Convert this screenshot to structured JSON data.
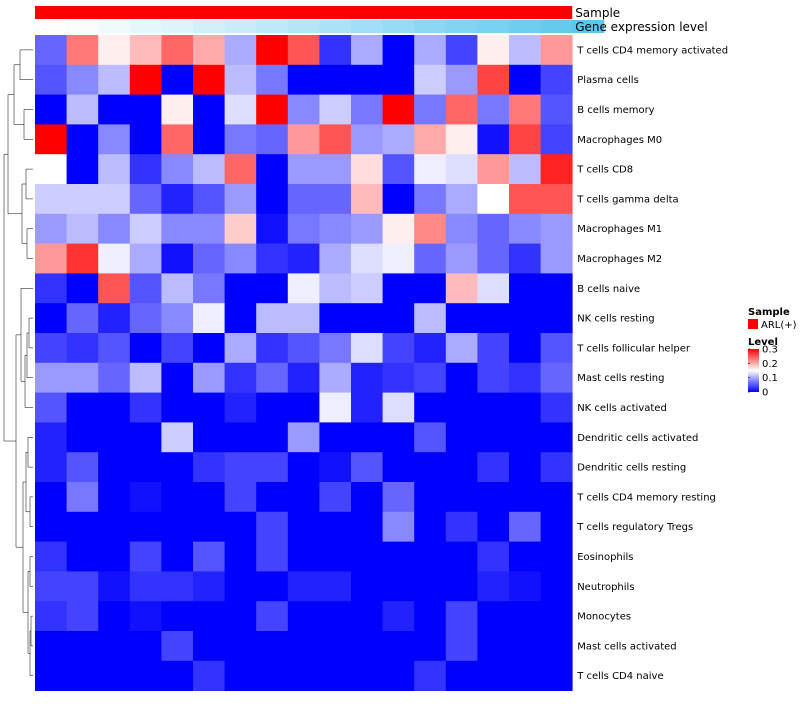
{
  "chart_data": {
    "type": "heatmap",
    "column_annotations": [
      {
        "name": "Sample",
        "value": "ARL(+)",
        "color": "#ff0000"
      },
      {
        "name": "Gene expression level",
        "colors": [
          "#ffffff",
          "#fafdfe",
          "#f0fafd",
          "#e6f7fc",
          "#dcf4fb",
          "#d2f0fa",
          "#c8edf9",
          "#bee9f8",
          "#b4e6f7",
          "#aae3f6",
          "#a0dff5",
          "#96dcf4",
          "#8cd8f3",
          "#82d5f2",
          "#78d2f1",
          "#6ecef0",
          "#64cbef",
          "#5ac8ee"
        ]
      }
    ],
    "rows": [
      "T cells CD4 memory activated",
      "Plasma cells",
      "B cells memory",
      "Macrophages M0",
      "T cells CD8",
      "T cells gamma delta",
      "Macrophages M1",
      "Macrophages M2",
      "B cells naive",
      "NK cells resting",
      "T cells follicular helper",
      "Mast cells resting",
      "NK cells activated",
      "Dendritic cells activated",
      "Dendritic cells resting",
      "T cells CD4 memory resting",
      "T cells regulatory  Tregs",
      "Eosinophils",
      "Neutrophils",
      "Monocytes",
      "Mast cells activated",
      "T cells CD4 naive"
    ],
    "values": [
      [
        0.06,
        0.23,
        0.16,
        0.19,
        0.24,
        0.2,
        0.1,
        0.3,
        0.25,
        0.03,
        0.1,
        0.0,
        0.1,
        0.04,
        0.16,
        0.11,
        0.21
      ],
      [
        0.05,
        0.08,
        0.11,
        0.3,
        0.0,
        0.3,
        0.11,
        0.07,
        0.0,
        0.0,
        0.0,
        0.0,
        0.12,
        0.09,
        0.26,
        0.0,
        0.04
      ],
      [
        0.0,
        0.11,
        0.0,
        0.0,
        0.16,
        0.0,
        0.13,
        0.3,
        0.08,
        0.12,
        0.07,
        0.3,
        0.07,
        0.24,
        0.07,
        0.23,
        0.05
      ],
      [
        0.3,
        0.0,
        0.08,
        0.0,
        0.24,
        0.0,
        0.07,
        0.06,
        0.21,
        0.25,
        0.09,
        0.1,
        0.2,
        0.16,
        0.01,
        0.26,
        0.04
      ],
      [
        0.15,
        0.0,
        0.11,
        0.03,
        0.08,
        0.11,
        0.24,
        0.0,
        0.09,
        0.09,
        0.17,
        0.05,
        0.14,
        0.13,
        0.21,
        0.11,
        0.28
      ],
      [
        0.12,
        0.12,
        0.12,
        0.06,
        0.02,
        0.05,
        0.09,
        0.0,
        0.06,
        0.06,
        0.19,
        0.0,
        0.07,
        0.1,
        0.15,
        0.25,
        0.25
      ],
      [
        0.09,
        0.11,
        0.08,
        0.12,
        0.08,
        0.08,
        0.18,
        0.01,
        0.07,
        0.08,
        0.09,
        0.16,
        0.22,
        0.08,
        0.06,
        0.08,
        0.09
      ],
      [
        0.21,
        0.27,
        0.14,
        0.1,
        0.01,
        0.06,
        0.08,
        0.03,
        0.02,
        0.1,
        0.13,
        0.14,
        0.06,
        0.09,
        0.06,
        0.03,
        0.09
      ],
      [
        0.03,
        0.0,
        0.25,
        0.05,
        0.11,
        0.07,
        0.0,
        0.0,
        0.14,
        0.11,
        0.12,
        0.0,
        0.0,
        0.19,
        0.13,
        0.0,
        0.0
      ],
      [
        0.0,
        0.06,
        0.02,
        0.06,
        0.08,
        0.14,
        0.0,
        0.11,
        0.11,
        0.0,
        0.0,
        0.0,
        0.11,
        0.0,
        0.0,
        0.0,
        0.0
      ],
      [
        0.04,
        0.03,
        0.05,
        0.0,
        0.04,
        0.0,
        0.1,
        0.03,
        0.05,
        0.07,
        0.13,
        0.04,
        0.02,
        0.1,
        0.04,
        0.0,
        0.05
      ],
      [
        0.09,
        0.09,
        0.06,
        0.11,
        0.0,
        0.09,
        0.03,
        0.06,
        0.02,
        0.1,
        0.02,
        0.03,
        0.04,
        0.0,
        0.04,
        0.03,
        0.06
      ],
      [
        0.05,
        0.0,
        0.0,
        0.03,
        0.0,
        0.0,
        0.02,
        0.0,
        0.0,
        0.14,
        0.02,
        0.13,
        0.0,
        0.0,
        0.0,
        0.0,
        0.03
      ],
      [
        0.02,
        0.0,
        0.0,
        0.0,
        0.12,
        0.0,
        0.0,
        0.0,
        0.09,
        0.0,
        0.0,
        0.0,
        0.05,
        0.0,
        0.0,
        0.0,
        0.0
      ],
      [
        0.02,
        0.05,
        0.0,
        0.0,
        0.0,
        0.03,
        0.04,
        0.04,
        0.0,
        0.01,
        0.05,
        0.0,
        0.0,
        0.0,
        0.03,
        0.0,
        0.03
      ],
      [
        0.0,
        0.07,
        0.0,
        0.01,
        0.0,
        0.0,
        0.04,
        0.0,
        0.0,
        0.04,
        0.0,
        0.06,
        0.0,
        0.0,
        0.0,
        0.0,
        0.0
      ],
      [
        0.0,
        0.0,
        0.0,
        0.0,
        0.0,
        0.0,
        0.0,
        0.04,
        0.0,
        0.0,
        0.0,
        0.08,
        0.0,
        0.03,
        0.0,
        0.06,
        0.0
      ],
      [
        0.03,
        0.0,
        0.0,
        0.04,
        0.0,
        0.05,
        0.0,
        0.04,
        0.0,
        0.0,
        0.0,
        0.0,
        0.0,
        0.0,
        0.03,
        0.0,
        0.0
      ],
      [
        0.04,
        0.04,
        0.01,
        0.03,
        0.03,
        0.02,
        0.0,
        0.0,
        0.02,
        0.02,
        0.0,
        0.0,
        0.0,
        0.0,
        0.02,
        0.01,
        0.0
      ],
      [
        0.03,
        0.04,
        0.0,
        0.01,
        0.0,
        0.0,
        0.0,
        0.04,
        0.0,
        0.0,
        0.0,
        0.02,
        0.0,
        0.04,
        0.0,
        0.0,
        0.0
      ],
      [
        0.0,
        0.0,
        0.0,
        0.0,
        0.04,
        0.0,
        0.0,
        0.0,
        0.0,
        0.0,
        0.0,
        0.0,
        0.0,
        0.04,
        0.0,
        0.0,
        0.0
      ],
      [
        0.0,
        0.0,
        0.0,
        0.0,
        0.0,
        0.03,
        0.0,
        0.0,
        0.0,
        0.0,
        0.0,
        0.0,
        0.03,
        0.0,
        0.0,
        0.0,
        0.0
      ]
    ],
    "color_scale": {
      "min": 0,
      "mid": 0.15,
      "max": 0.3,
      "low": "#0000ff",
      "midColor": "#ffffff",
      "high": "#ff0000"
    },
    "legend": {
      "sample_title": "Sample",
      "sample_entry": "ARL(+)",
      "sample_color": "#ff0000",
      "level_title": "Level",
      "level_ticks": [
        {
          "value": 0.3,
          "label": "0.3"
        },
        {
          "value": 0.2,
          "label": "0.2"
        },
        {
          "value": 0.1,
          "label": "0.1"
        },
        {
          "value": 0,
          "label": "0"
        }
      ]
    }
  }
}
